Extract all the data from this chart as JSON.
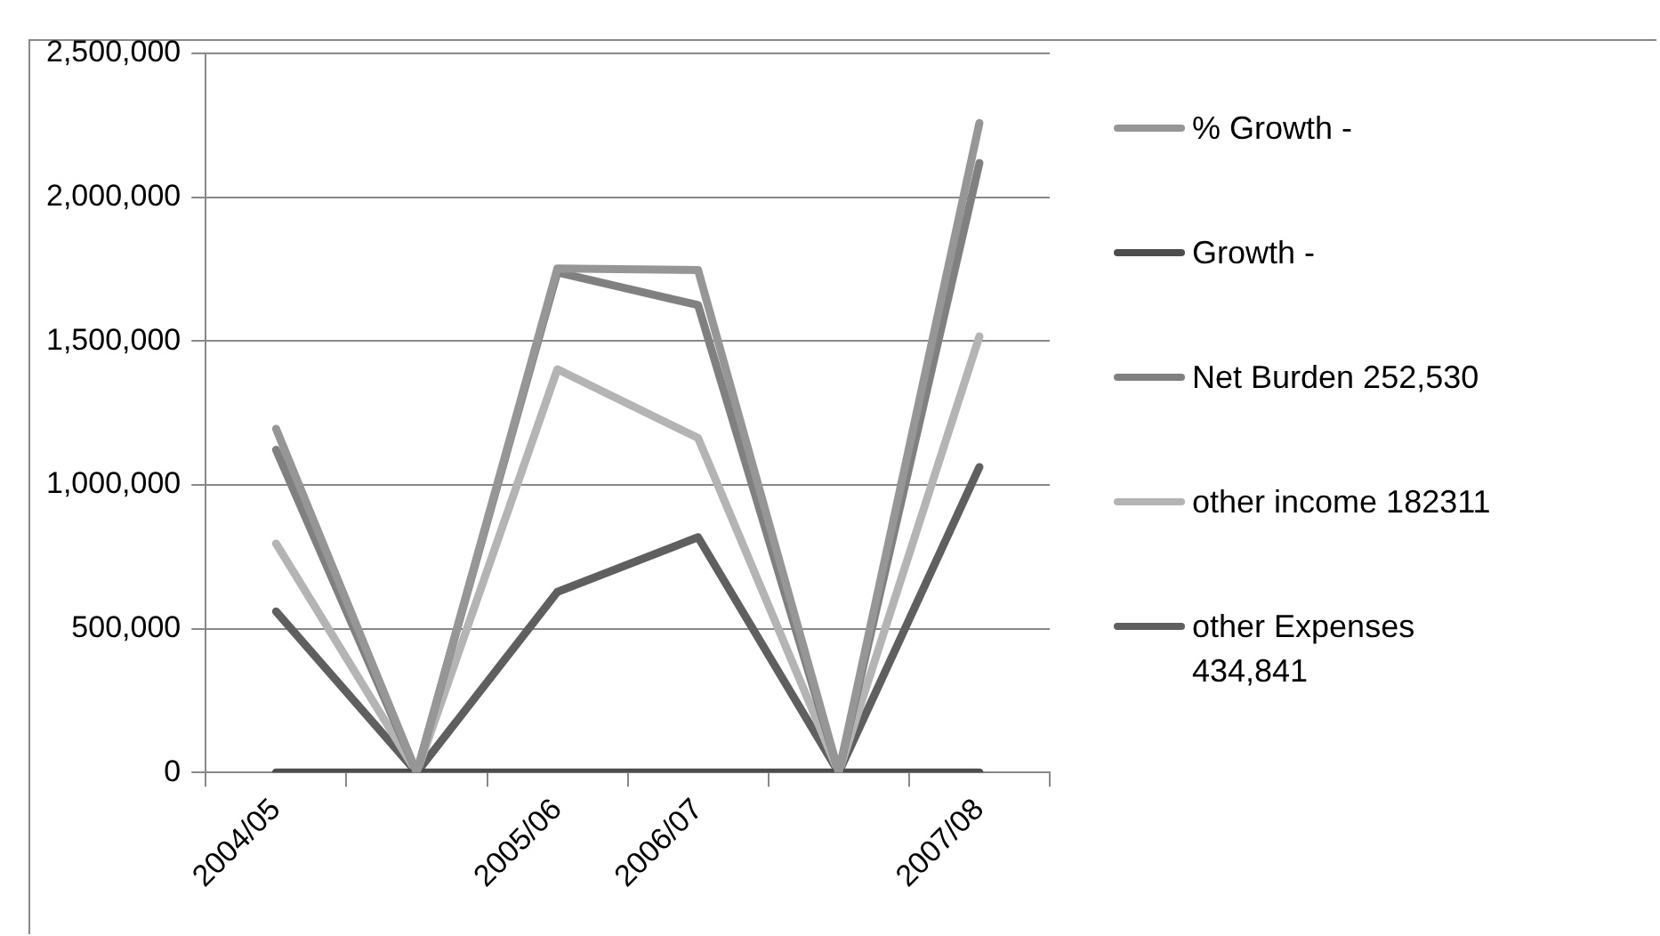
{
  "chart_data": {
    "type": "line",
    "categories": [
      "2004/05",
      null,
      "2005/06",
      "2006/07",
      null,
      "2007/08"
    ],
    "series": [
      {
        "name": "% Growth -",
        "color": "#969696",
        "values": [
          1195000,
          0,
          1752000,
          1747000,
          0,
          2258000
        ]
      },
      {
        "name": "Growth -",
        "color": "#4d4d4d",
        "values": [
          0,
          0,
          0,
          0,
          0,
          0
        ]
      },
      {
        "name": "Net Burden 252,530",
        "color": "#808080",
        "values": [
          1122000,
          0,
          1739000,
          1625000,
          0,
          2119000
        ]
      },
      {
        "name": "other income 182311",
        "color": "#b4b4b4",
        "values": [
          796000,
          0,
          1402000,
          1163000,
          0,
          1516000
        ]
      },
      {
        "name": "other Expenses 434,841",
        "color": "#5f5f5f",
        "values": [
          560000,
          0,
          628000,
          818000,
          0,
          1062000
        ]
      }
    ],
    "ylim": [
      0,
      2500000
    ],
    "yticks": [
      {
        "value": 0,
        "label": "0"
      },
      {
        "value": 500000,
        "label": "500,000"
      },
      {
        "value": 1000000,
        "label": "1,000,000"
      },
      {
        "value": 1500000,
        "label": "1,500,000"
      },
      {
        "value": 2000000,
        "label": "2,000,000"
      },
      {
        "value": 2500000,
        "label": "2,500,000"
      }
    ],
    "grid": "y",
    "legend": "right",
    "marker": "none",
    "line_style": "solid"
  }
}
